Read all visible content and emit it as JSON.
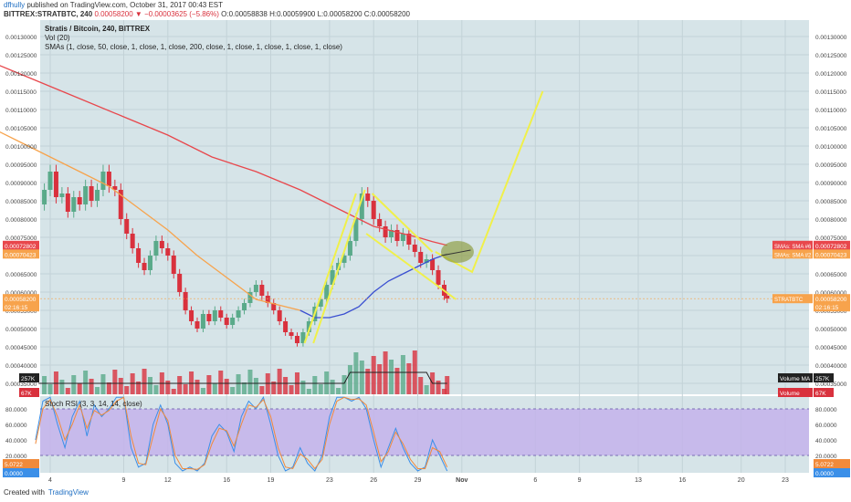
{
  "header": {
    "user": "dfhully",
    "published": "published on TradingView.com, October 31, 2017 00:43 EST",
    "symbol": "BITTREX:STRATBTC, 240",
    "price_change": "0.00058200 ▼ −0.00003625 (−5.86%)",
    "ohlc": "O:0.00058838 H:0.00059900 L:0.00058200 C:0.00058200"
  },
  "legend": {
    "title": "Stratis / Bitcoin, 240, BITTREX",
    "vol": "Vol (20)",
    "smas": "SMAs (1, close, 50, close, 1, close, 1, close, 200, close, 1, close, 1, close, 1, close, 1, close)",
    "stoch": "Stoch RSI (3, 3, 14, 14, close)"
  },
  "footer": {
    "created": "Created with",
    "brand": "TradingView"
  },
  "colors": {
    "pane_bg": "#d6e4e8",
    "stoch_band": "#c4b3eb",
    "candle_up": "#5aaa8a",
    "candle_down": "#d9313d",
    "sma200": "#e8474c",
    "sma50": "#f7a34c",
    "sma_blue": "#3a4fd1",
    "drawing": "#f0f04a",
    "ellipse": "#8a9a3a",
    "k_line": "#3b8fe8",
    "d_line": "#f18a3b",
    "vol_ma": "#222222"
  },
  "chart_data": [
    {
      "type": "candlestick",
      "title": "Stratis / Bitcoin, 240, BITTREX",
      "x_ticks": [
        "4",
        "9",
        "12",
        "16",
        "19",
        "23",
        "26",
        "29",
        "Nov",
        "6",
        "9",
        "13",
        "16",
        "20",
        "23"
      ],
      "x_axis_note": "4-hour candles, Oct 3 – Oct 31 2017; axis extends into November",
      "ylim": [
        0.000335,
        0.00134
      ],
      "y_ticks": [
        "0.00035000",
        "0.00040000",
        "0.00045000",
        "0.00050000",
        "0.00055000",
        "0.00060000",
        "0.00065000",
        "0.00070000",
        "0.00075000",
        "0.00080000",
        "0.00085000",
        "0.00090000",
        "0.00095000",
        "0.00100000",
        "0.00105000",
        "0.00110000",
        "0.00115000",
        "0.00120000",
        "0.00125000",
        "0.00130000"
      ],
      "close_series": {
        "day": [
          3.2,
          3.6,
          4.0,
          4.4,
          4.8,
          5.2,
          5.6,
          6.0,
          6.4,
          6.8,
          7.2,
          7.6,
          8.0,
          8.4,
          8.8,
          9.2,
          9.6,
          10.0,
          10.4,
          10.8,
          11.2,
          11.6,
          12.0,
          12.4,
          12.8,
          13.2,
          13.6,
          14.0,
          14.4,
          14.8,
          15.2,
          15.6,
          16.0,
          16.4,
          16.8,
          17.2,
          17.6,
          18.0,
          18.4,
          18.8,
          19.2,
          19.6,
          20.0,
          20.4,
          20.8,
          21.2,
          21.6,
          22.0,
          22.4,
          22.8,
          23.2,
          23.6,
          24.0,
          24.4,
          24.8,
          25.2,
          25.6,
          26.0,
          26.4,
          26.8,
          27.2,
          27.6,
          28.0,
          28.4,
          28.8,
          29.2,
          29.6,
          30.0,
          30.4,
          30.8,
          31.0
        ],
        "close": [
          0.00084,
          0.00088,
          0.00093,
          0.00086,
          0.00087,
          0.00082,
          0.00086,
          0.00084,
          0.00089,
          0.00085,
          0.00088,
          0.00093,
          0.00089,
          0.00088,
          0.0008,
          0.00076,
          0.00072,
          0.00068,
          0.00066,
          0.0007,
          0.00074,
          0.00072,
          0.0007,
          0.00065,
          0.0006,
          0.00055,
          0.00052,
          0.0005,
          0.00054,
          0.00052,
          0.00055,
          0.00053,
          0.00051,
          0.00053,
          0.00055,
          0.00057,
          0.0006,
          0.00062,
          0.00059,
          0.00057,
          0.00055,
          0.00052,
          0.00049,
          0.00048,
          0.00046,
          0.00049,
          0.00052,
          0.00056,
          0.00058,
          0.00062,
          0.00066,
          0.00068,
          0.0007,
          0.00074,
          0.0008,
          0.00087,
          0.00085,
          0.0008,
          0.00078,
          0.00075,
          0.00077,
          0.00074,
          0.00076,
          0.00073,
          0.00071,
          0.00068,
          0.00069,
          0.00066,
          0.00062,
          0.00059,
          0.000582
        ]
      },
      "sma200": {
        "day": [
          0.0,
          3.0,
          6.0,
          9.0,
          12.0,
          15.0,
          18.0,
          21.0,
          24.0,
          25.0,
          26.0,
          28.0,
          29.0,
          30.0,
          31.0
        ],
        "value": [
          0.00123,
          0.00118,
          0.00113,
          0.00108,
          0.00103,
          0.00097,
          0.00093,
          0.00088,
          0.00082,
          0.0008,
          0.00078,
          0.00076,
          0.00075,
          0.000738,
          0.000728
        ]
      },
      "sma50": {
        "day": [
          0.0,
          2.0,
          4.0,
          6.0,
          8.0,
          10.0,
          12.0,
          14.0,
          16.0,
          17.0,
          18.0,
          19.0,
          20.0,
          21.0
        ],
        "value": [
          0.00105,
          0.00101,
          0.00097,
          0.00093,
          0.00089,
          0.00083,
          0.00077,
          0.0007,
          0.00064,
          0.00061,
          0.00058,
          0.00057,
          0.00056,
          0.00055
        ]
      },
      "sma_blue": {
        "day": [
          21.0,
          22.0,
          23.0,
          24.0,
          25.0,
          26.0,
          27.0,
          28.0,
          29.0,
          30.0,
          31.0
        ],
        "value": [
          0.00055,
          0.00053,
          0.00053,
          0.00054,
          0.00056,
          0.0006,
          0.00063,
          0.00065,
          0.00067,
          0.00069,
          0.000704
        ]
      },
      "price_labels": [
        {
          "text": "0.00072802",
          "color": "#e8474c",
          "side": "left"
        },
        {
          "text": "0.00070423",
          "color": "#f7a34c",
          "side": "left"
        },
        {
          "text": "0.00058200",
          "color": "#f7a34c",
          "side": "left"
        },
        {
          "text": "02:16:15",
          "color": "#f7a34c",
          "side": "left"
        },
        {
          "text": "SMAs: SMA #6",
          "color": "#e8474c",
          "side": "right"
        },
        {
          "text": "0.00072802",
          "color": "#e8474c",
          "side": "right"
        },
        {
          "text": "SMAs: SMA #2",
          "color": "#f7a34c",
          "side": "right"
        },
        {
          "text": "0.00070423",
          "color": "#f7a34c",
          "side": "right"
        },
        {
          "text": "STRATBTC",
          "color": "#f7a34c",
          "side": "right"
        },
        {
          "text": "0.00058200",
          "color": "#f7a34c",
          "side": "right"
        },
        {
          "text": "02:16:15",
          "color": "#f7a34c",
          "side": "right"
        }
      ],
      "volume": {
        "labels": [
          {
            "text": "257K",
            "color": "#222222",
            "side": "left"
          },
          {
            "text": "67K",
            "color": "#d9313d",
            "side": "left"
          },
          {
            "text": "Volume MA",
            "color": "#222222",
            "side": "right"
          },
          {
            "text": "257K",
            "color": "#222222",
            "side": "right"
          },
          {
            "text": "Volume",
            "color": "#d9313d",
            "side": "right"
          },
          {
            "text": "67K",
            "color": "#d9313d",
            "side": "right"
          }
        ]
      }
    },
    {
      "type": "line",
      "title": "Stoch RSI (3, 3, 14, 14, close)",
      "ylim": [
        0,
        100
      ],
      "y_ticks": [
        "20.0000",
        "40.0000",
        "60.0000",
        "80.0000"
      ],
      "band": [
        20,
        80
      ],
      "x_ticks": [
        "4",
        "9",
        "12",
        "16",
        "19",
        "23",
        "26",
        "29",
        "Nov",
        "6",
        "9",
        "13",
        "16",
        "20",
        "23"
      ],
      "series": [
        {
          "color": "#3b8fe8",
          "day": [
            3.0,
            3.5,
            4.0,
            4.5,
            5.0,
            5.5,
            6.0,
            6.5,
            7.0,
            7.5,
            8.0,
            8.5,
            9.0,
            9.5,
            10.0,
            10.5,
            11.0,
            11.5,
            12.0,
            12.5,
            13.0,
            13.5,
            14.0,
            14.5,
            15.0,
            15.5,
            16.0,
            16.5,
            17.0,
            17.5,
            18.0,
            18.5,
            19.0,
            19.5,
            20.0,
            20.5,
            21.0,
            21.5,
            22.0,
            22.5,
            23.0,
            23.5,
            24.0,
            24.5,
            25.0,
            25.5,
            26.0,
            26.5,
            27.0,
            27.5,
            28.0,
            28.5,
            29.0,
            29.5,
            30.0,
            30.5,
            31.0
          ],
          "value": [
            40,
            90,
            95,
            60,
            30,
            70,
            90,
            45,
            85,
            70,
            80,
            95,
            95,
            30,
            5,
            10,
            60,
            85,
            60,
            10,
            0,
            5,
            0,
            10,
            45,
            60,
            50,
            25,
            70,
            90,
            80,
            95,
            60,
            20,
            0,
            5,
            30,
            10,
            0,
            20,
            70,
            95,
            95,
            90,
            95,
            80,
            40,
            5,
            30,
            55,
            30,
            10,
            0,
            5,
            40,
            20,
            0
          ]
        },
        {
          "color": "#f18a3b",
          "day": [
            3.0,
            3.5,
            4.0,
            4.5,
            5.0,
            5.5,
            6.0,
            6.5,
            7.0,
            7.5,
            8.0,
            8.5,
            9.0,
            9.5,
            10.0,
            10.5,
            11.0,
            11.5,
            12.0,
            12.5,
            13.0,
            13.5,
            14.0,
            14.5,
            15.0,
            15.5,
            16.0,
            16.5,
            17.0,
            17.5,
            18.0,
            18.5,
            19.0,
            19.5,
            20.0,
            20.5,
            21.0,
            21.5,
            22.0,
            22.5,
            23.0,
            23.5,
            24.0,
            24.5,
            25.0,
            25.5,
            26.0,
            26.5,
            27.0,
            27.5,
            28.0,
            28.5,
            29.0,
            29.5,
            30.0,
            30.5,
            31.0
          ],
          "value": [
            35,
            80,
            92,
            70,
            40,
            60,
            85,
            55,
            78,
            72,
            78,
            90,
            95,
            45,
            10,
            8,
            45,
            80,
            65,
            20,
            3,
            3,
            2,
            8,
            35,
            55,
            52,
            32,
            60,
            85,
            82,
            92,
            70,
            30,
            5,
            3,
            22,
            15,
            3,
            15,
            60,
            90,
            95,
            92,
            93,
            85,
            50,
            12,
            25,
            50,
            35,
            15,
            3,
            3,
            30,
            25,
            5
          ]
        }
      ],
      "value_labels": [
        {
          "text": "5.0722",
          "color": "#f18a3b"
        },
        {
          "text": "0.0000",
          "color": "#3b8fe8"
        }
      ]
    }
  ]
}
